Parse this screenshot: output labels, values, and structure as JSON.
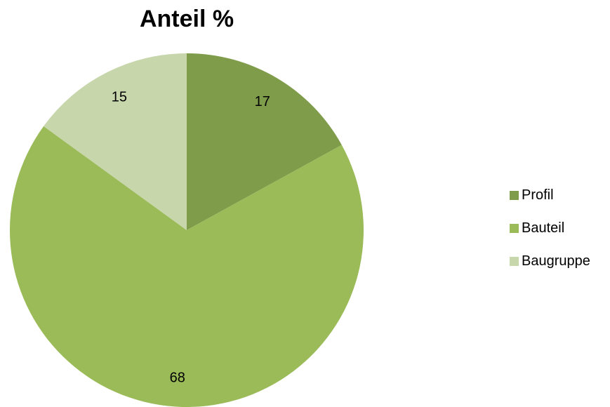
{
  "chart_data": {
    "type": "pie",
    "title": "Anteil %",
    "categories": [
      "Profil",
      "Bauteil",
      "Baugruppe"
    ],
    "values": [
      17,
      68,
      15
    ],
    "colors": [
      "#7f9c4a",
      "#9bbb59",
      "#c7d6ab"
    ],
    "legend_position": "right"
  }
}
